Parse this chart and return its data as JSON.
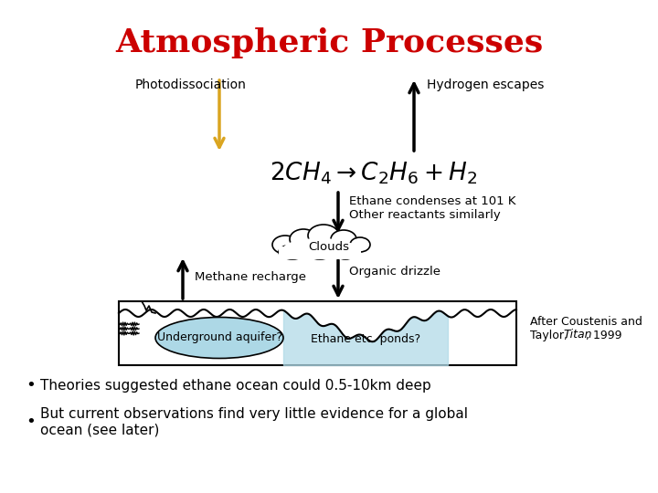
{
  "title": "Atmospheric Processes",
  "title_color": "#CC0000",
  "title_fontsize": 26,
  "bg_color": "#FFFFFF",
  "photodissociation_label": "Photodissociation",
  "hydrogen_escapes_label": "Hydrogen escapes",
  "ethane_condenses_label": "Ethane condenses at 101 K",
  "other_reactants_label": "Other reactants similarly",
  "clouds_label": "Clouds",
  "methane_recharge_label": "Methane recharge",
  "organic_drizzle_label": "Organic drizzle",
  "underground_label": "Underground aquifer?",
  "ethane_ponds_label": "Ethane etc. ponds?",
  "after_coustenis_label1": "After Coustenis and",
  "after_coustenis_label2": "Taylor, ",
  "after_coustenis_italic": "Titan",
  "after_coustenis_label3": ", 1999",
  "bullet1": "Theories suggested ethane ocean could 0.5-10km deep",
  "bullet2": "But current observations find very little evidence for a global\nocean (see later)",
  "orange_color": "#DAA520",
  "light_blue": "#ADD8E6"
}
